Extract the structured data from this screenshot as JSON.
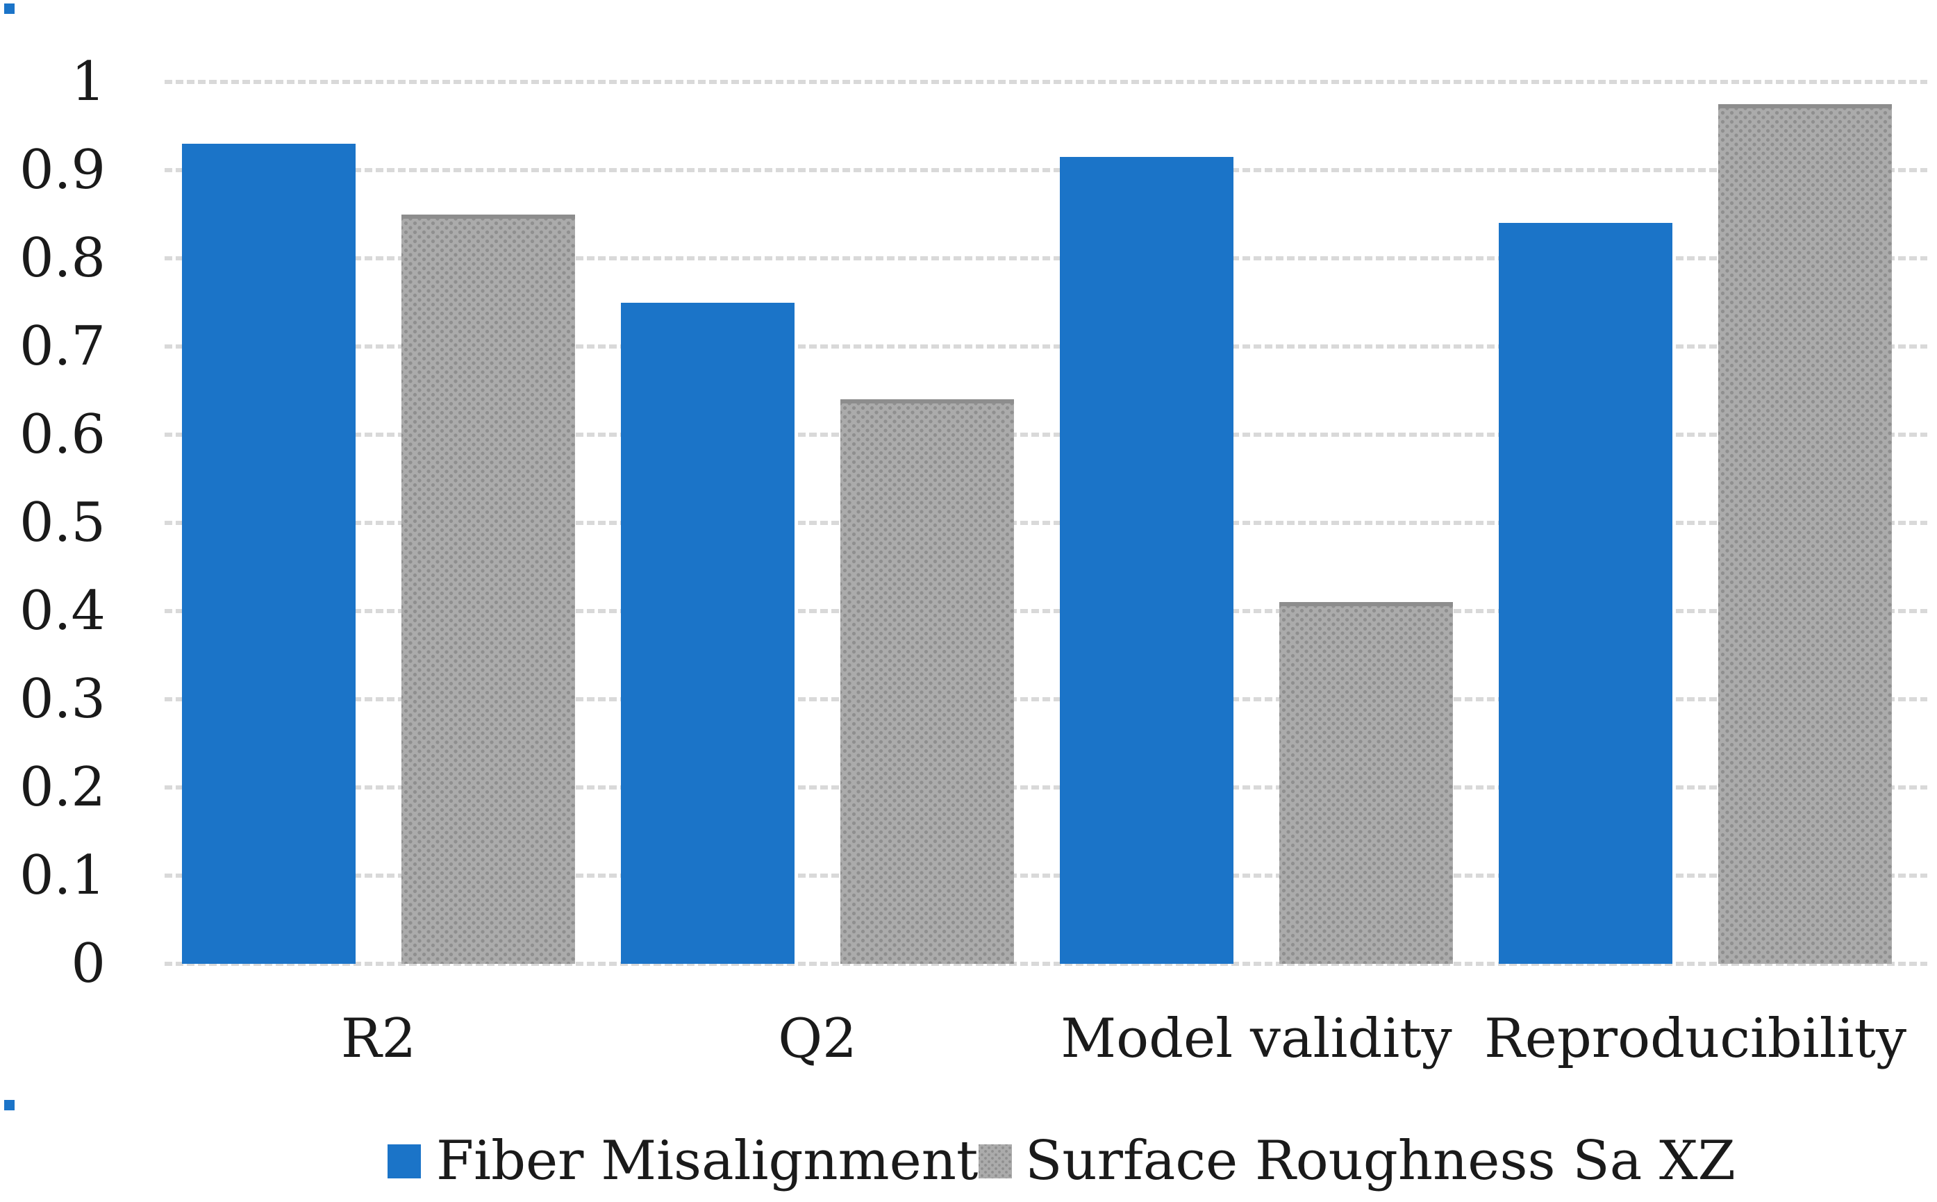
{
  "chart_data": {
    "type": "bar",
    "title": "",
    "xlabel": "",
    "ylabel": "",
    "categories": [
      "R2",
      "Q2",
      "Model validity",
      "Reproducibility"
    ],
    "series": [
      {
        "name": "Fiber Misalignment",
        "color": "#1b74c8",
        "fill_pattern": "solid",
        "values": [
          0.93,
          0.75,
          0.915,
          0.84
        ]
      },
      {
        "name": "Surface Roughness Sa XZ",
        "color": "#ababab",
        "fill_pattern": "dotted",
        "dot_color": "#8f8f8f",
        "values": [
          0.85,
          0.64,
          0.41,
          0.975
        ]
      }
    ],
    "ylim": [
      0,
      1
    ],
    "ytick_step": 0.1,
    "ytick_labels": [
      "0",
      "0.1",
      "0.2",
      "0.3",
      "0.4",
      "0.5",
      "0.6",
      "0.7",
      "0.8",
      "0.9",
      "1"
    ],
    "grid": "horizontal-dashed",
    "gridline_color": "#d9d9d9",
    "legend_position": "bottom",
    "background_color": "#ffffff",
    "text_color": "#1a1a1a"
  }
}
